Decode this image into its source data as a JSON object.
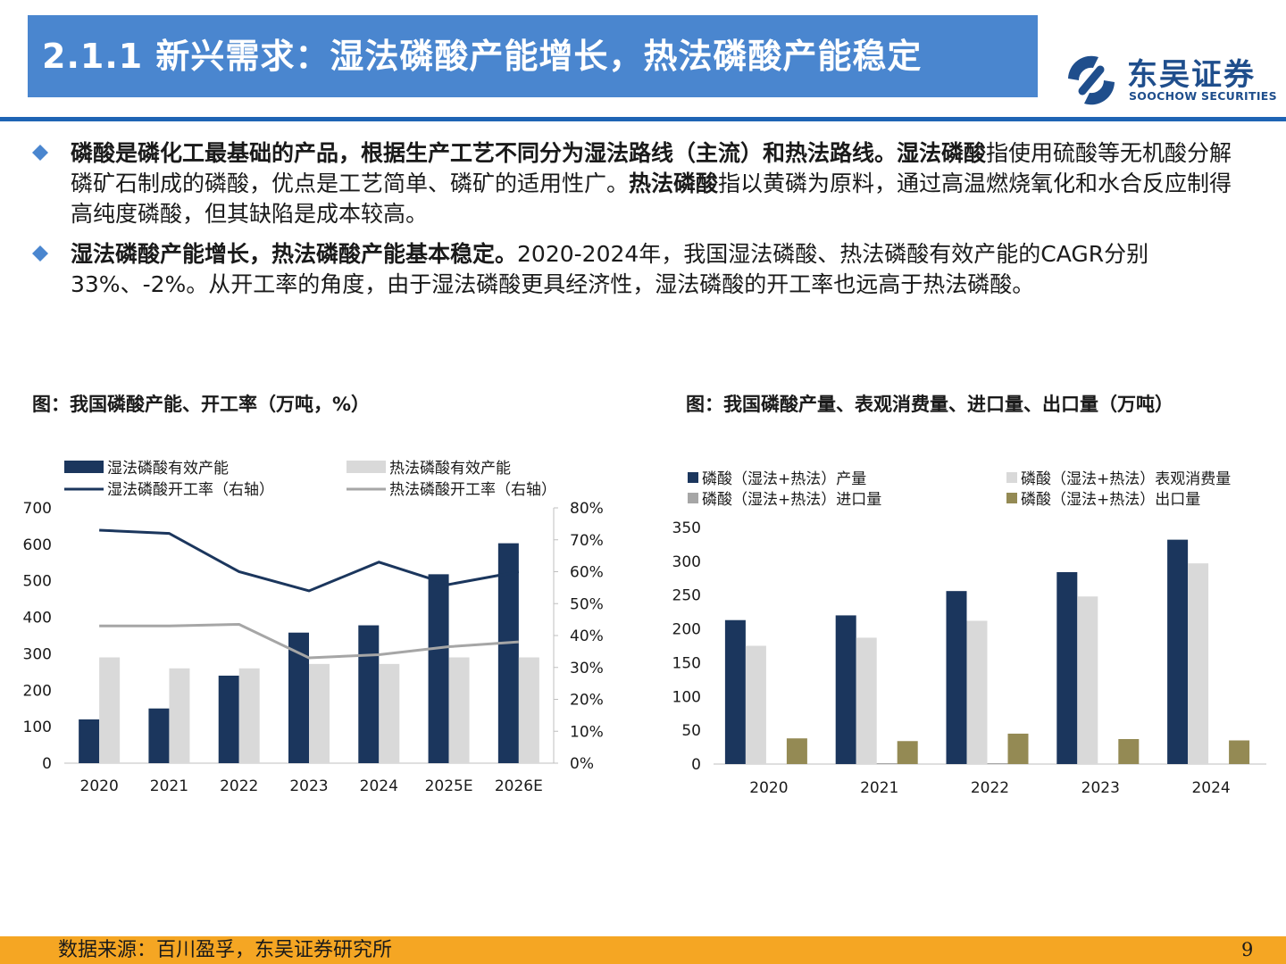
{
  "header": {
    "title": "2.1.1 新兴需求：湿法磷酸产能增长，热法磷酸产能稳定",
    "logo_cn": "东吴证券",
    "logo_en": "SOOCHOW SECURITIES"
  },
  "bullets": [
    {
      "runs": [
        {
          "text": "磷酸是磷化工最基础的产品，根据生产工艺不同分为湿法路线（主流）和热法路线。",
          "bold": true
        },
        {
          "text": "湿法磷酸",
          "bold": true
        },
        {
          "text": "指使用硫酸等无机酸分解磷矿石制成的磷酸，优点是工艺简单、磷矿的适用性广。",
          "bold": false
        },
        {
          "text": "热法磷酸",
          "bold": true
        },
        {
          "text": "指以黄磷为原料，通过高温燃烧氧化和水合反应制得高纯度磷酸，但其缺陷是成本较高。",
          "bold": false
        }
      ]
    },
    {
      "runs": [
        {
          "text": "湿法磷酸产能增长，热法磷酸产能基本稳定。",
          "bold": true
        },
        {
          "text": "2020-2024年，我国湿法磷酸、热法磷酸有效产能的CAGR分别33%、-2%。从开工率的角度，由于湿法磷酸更具经济性，湿法磷酸的开工率也远高于热法磷酸。",
          "bold": false
        }
      ]
    }
  ],
  "left_chart_title": "图：我国磷酸产能、开工率（万吨，%）",
  "right_chart_title": "图：我国磷酸产量、表观消费量、进口量、出口量（万吨）",
  "chart_data": [
    {
      "type": "bar",
      "categories": [
        "2020",
        "2021",
        "2022",
        "2023",
        "2024",
        "2025E",
        "2026E"
      ],
      "series": [
        {
          "name": "湿法磷酸有效产能",
          "type": "bar",
          "axis": "left",
          "color": "#1b365d",
          "values": [
            120,
            150,
            240,
            358,
            378,
            518,
            603
          ]
        },
        {
          "name": "热法磷酸有效产能",
          "type": "bar",
          "axis": "left",
          "color": "#d9d9d9",
          "values": [
            290,
            260,
            260,
            272,
            272,
            290,
            290
          ]
        },
        {
          "name": "湿法磷酸开工率（右轴）",
          "type": "line",
          "axis": "right",
          "color": "#1b365d",
          "values": [
            73,
            72,
            60,
            54,
            63,
            56,
            60
          ]
        },
        {
          "name": "热法磷酸开工率（右轴）",
          "type": "line",
          "axis": "right",
          "color": "#a6a6a6",
          "values": [
            43,
            43,
            43.5,
            33,
            34,
            36.5,
            38
          ]
        }
      ],
      "ylim": [
        0,
        700
      ],
      "yticks": [
        "0",
        "100",
        "200",
        "300",
        "400",
        "500",
        "600",
        "700"
      ],
      "y2lim": [
        0,
        80
      ],
      "y2ticks": [
        "0%",
        "10%",
        "20%",
        "30%",
        "40%",
        "50%",
        "60%",
        "70%",
        "80%"
      ],
      "grid": false,
      "legend": "top"
    },
    {
      "type": "bar",
      "categories": [
        "2020",
        "2021",
        "2022",
        "2023",
        "2024"
      ],
      "series": [
        {
          "name": "磷酸（湿法+热法）产量",
          "color": "#1b365d",
          "values": [
            213,
            220,
            256,
            284,
            332
          ]
        },
        {
          "name": "磷酸（湿法+热法）表观消费量",
          "color": "#d9d9d9",
          "values": [
            175,
            187,
            212,
            248,
            297
          ]
        },
        {
          "name": "磷酸（湿法+热法）进口量",
          "color": "#a6a6a6",
          "values": [
            0,
            1,
            1,
            0,
            0
          ]
        },
        {
          "name": "磷酸（湿法+热法）出口量",
          "color": "#948a54",
          "values": [
            38,
            34,
            45,
            37,
            35
          ]
        }
      ],
      "ylim": [
        0,
        350
      ],
      "yticks": [
        "0",
        "50",
        "100",
        "150",
        "200",
        "250",
        "300",
        "350"
      ],
      "grid": false,
      "legend": "top"
    }
  ],
  "footer": {
    "source": "数据来源：百川盈孚，东吴证券研究所",
    "page": "9"
  },
  "colors": {
    "title_bg": "#4a86cf",
    "rule": "#1e64b4",
    "bullet": "#4a86cf",
    "footer_bg": "#f5a623",
    "logo": "#1f4e8c"
  }
}
